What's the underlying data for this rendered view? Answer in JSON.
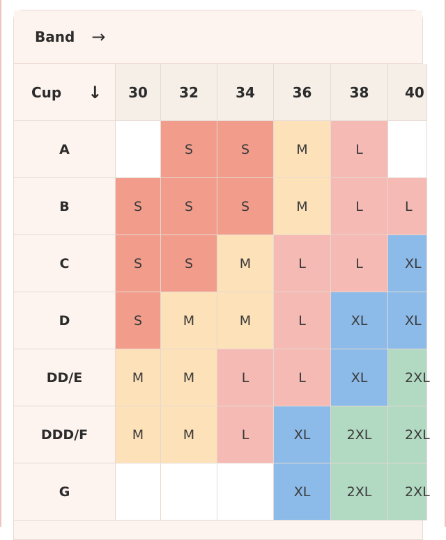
{
  "header": {
    "band_label": "Band",
    "band_arrow": "→",
    "cup_label": "Cup",
    "cup_arrow": "↓"
  },
  "bands": [
    "30",
    "32",
    "34",
    "36",
    "38",
    "40"
  ],
  "rows": [
    {
      "cup": "A",
      "sizes": [
        "",
        "S",
        "S",
        "M",
        "L",
        ""
      ]
    },
    {
      "cup": "B",
      "sizes": [
        "S",
        "S",
        "S",
        "M",
        "L",
        "L"
      ]
    },
    {
      "cup": "C",
      "sizes": [
        "S",
        "S",
        "M",
        "L",
        "L",
        "XL"
      ]
    },
    {
      "cup": "D",
      "sizes": [
        "S",
        "M",
        "M",
        "L",
        "XL",
        "XL"
      ]
    },
    {
      "cup": "DD/E",
      "sizes": [
        "M",
        "M",
        "L",
        "L",
        "XL",
        "2XL"
      ]
    },
    {
      "cup": "DDD/F",
      "sizes": [
        "M",
        "M",
        "L",
        "XL",
        "2XL",
        "2XL"
      ]
    },
    {
      "cup": "G",
      "sizes": [
        "",
        "",
        "",
        "XL",
        "2XL",
        "2XL"
      ]
    }
  ],
  "colors": {
    "S": "#f29d8c",
    "M": "#fde1b8",
    "L": "#f4bab3",
    "XL": "#8cbbe9",
    "2XL": "#b2d9c2",
    "empty": "#ffffff"
  }
}
